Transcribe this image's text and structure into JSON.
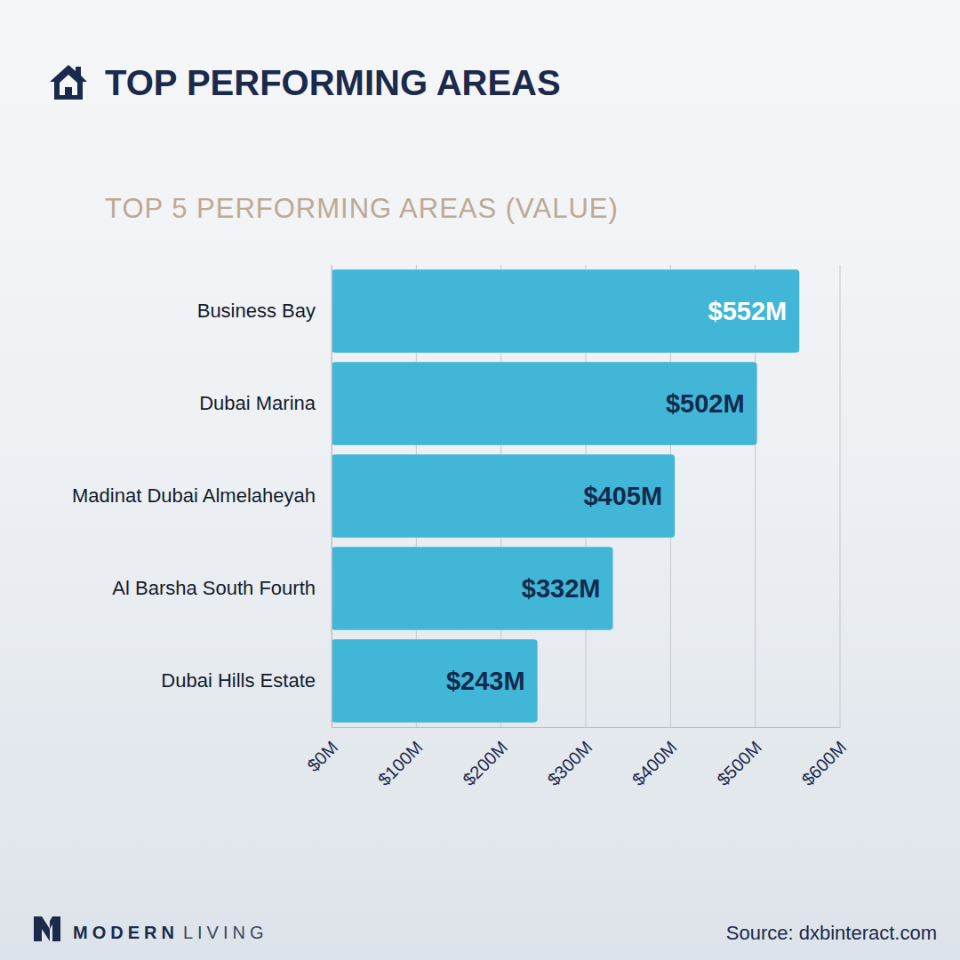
{
  "chart_data": {
    "type": "bar",
    "orientation": "horizontal",
    "title": "TOP PERFORMING AREAS",
    "subtitle": "TOP 5 PERFORMING AREAS (VALUE)",
    "categories": [
      "Business Bay",
      "Dubai Marina",
      "Madinat Dubai Almelaheyah",
      "Al Barsha South Fourth",
      "Dubai Hills Estate"
    ],
    "values": [
      552,
      502,
      405,
      332,
      243
    ],
    "value_labels": [
      "$552M",
      "$502M",
      "$405M",
      "$332M",
      "$243M"
    ],
    "color": "#41b6d6",
    "xlim": [
      0,
      600
    ],
    "xticks": [
      {
        "value": 0,
        "label": "$0M"
      },
      {
        "value": 100,
        "label": "$100M"
      },
      {
        "value": 200,
        "label": "$200M"
      },
      {
        "value": 300,
        "label": "$300M"
      },
      {
        "value": 400,
        "label": "$400M"
      },
      {
        "value": 500,
        "label": "$500M"
      },
      {
        "value": 600,
        "label": "$600M"
      }
    ],
    "grid": true,
    "data_labels": true
  },
  "footer": {
    "brand": [
      "MODERN",
      "LIVING"
    ],
    "source": "Source: dxbinteract.com"
  }
}
